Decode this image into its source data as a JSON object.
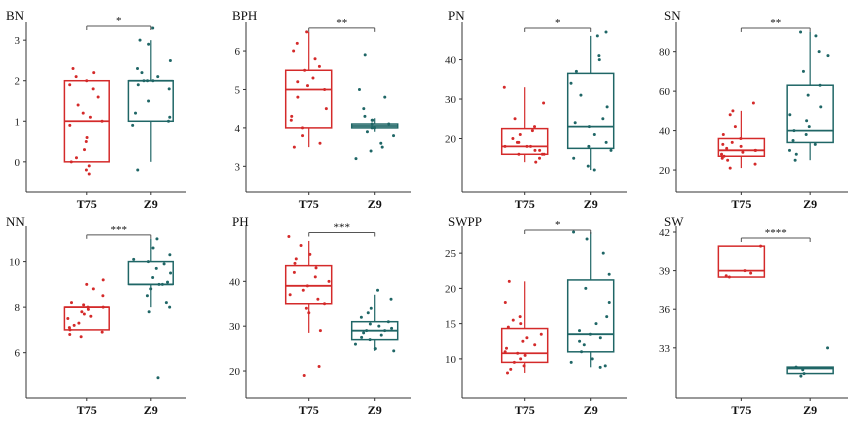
{
  "colors": {
    "T75": "#d42a2a",
    "Z9": "#1f6666",
    "axis": "#333333",
    "bracket": "#555555"
  },
  "chart_data": [
    {
      "type": "box",
      "title": "BN",
      "categories": [
        "T75",
        "Z9"
      ],
      "ylim": [
        -0.3,
        3.3
      ],
      "yticks": [
        0,
        1,
        2,
        3
      ],
      "significance": "*",
      "series": [
        {
          "name": "T75",
          "q1": 0,
          "median": 1,
          "q3": 2,
          "whisker_low": 0,
          "whisker_high": 2,
          "points": [
            -0.2,
            -0.1,
            0,
            0.1,
            0.3,
            0.6,
            0.9,
            1.0,
            1.1,
            1.2,
            1.4,
            1.6,
            1.8,
            1.9,
            2.0,
            2.1,
            2.2,
            2.3,
            -0.3,
            0.5
          ]
        },
        {
          "name": "Z9",
          "q1": 1,
          "median": 2,
          "q3": 2,
          "whisker_low": 0,
          "whisker_high": 3,
          "points": [
            -0.2,
            0.9,
            1.0,
            1.1,
            1.2,
            1.5,
            1.8,
            1.9,
            2.0,
            2.0,
            2.1,
            2.2,
            2.3,
            2.5,
            2.9,
            3.0,
            3.3,
            2.0
          ]
        }
      ]
    },
    {
      "type": "box",
      "title": "BPH",
      "categories": [
        "T75",
        "Z9"
      ],
      "ylim": [
        2.8,
        6.6
      ],
      "yticks": [
        3,
        4,
        5,
        6
      ],
      "significance": "**",
      "series": [
        {
          "name": "T75",
          "q1": 4.0,
          "median": 5.0,
          "q3": 5.5,
          "whisker_low": 3.5,
          "whisker_high": 6.5,
          "points": [
            3.5,
            3.6,
            3.8,
            4.0,
            4.2,
            4.5,
            4.8,
            5.0,
            5.1,
            5.2,
            5.3,
            5.5,
            5.6,
            5.8,
            6.0,
            6.2,
            6.5,
            4.3
          ]
        },
        {
          "name": "Z9",
          "q1": 4.0,
          "median": 4.05,
          "q3": 4.1,
          "whisker_low": 3.9,
          "whisker_high": 4.25,
          "points": [
            3.2,
            3.4,
            3.5,
            3.6,
            3.8,
            3.9,
            4.0,
            4.0,
            4.1,
            4.1,
            4.2,
            4.2,
            4.3,
            4.5,
            4.8,
            5.0,
            5.9
          ]
        }
      ]
    },
    {
      "type": "box",
      "title": "PN",
      "categories": [
        "T75",
        "Z9"
      ],
      "ylim": [
        11,
        48
      ],
      "yticks": [
        20,
        30,
        40
      ],
      "significance": "*",
      "series": [
        {
          "name": "T75",
          "q1": 16,
          "median": 18,
          "q3": 22.5,
          "whisker_low": 14,
          "whisker_high": 33,
          "points": [
            14,
            15,
            16,
            16,
            17,
            17,
            18,
            18,
            18,
            19,
            19,
            20,
            21,
            22,
            23,
            25,
            29,
            33,
            16
          ]
        },
        {
          "name": "Z9",
          "q1": 17.5,
          "median": 23,
          "q3": 36.5,
          "whisker_low": 12,
          "whisker_high": 46,
          "points": [
            12,
            13,
            15,
            17,
            18,
            19,
            21,
            23,
            24,
            25,
            28,
            31,
            34,
            37,
            40,
            41,
            46,
            47
          ]
        }
      ]
    },
    {
      "type": "box",
      "title": "SN",
      "categories": [
        "T75",
        "Z9"
      ],
      "ylim": [
        18,
        92
      ],
      "yticks": [
        20,
        40,
        60,
        80
      ],
      "significance": "**",
      "series": [
        {
          "name": "T75",
          "q1": 27,
          "median": 30,
          "q3": 36,
          "whisker_low": 21,
          "whisker_high": 50,
          "points": [
            21,
            23,
            25,
            26,
            27,
            28,
            29,
            30,
            30,
            31,
            32,
            33,
            34,
            36,
            38,
            42,
            48,
            50,
            54
          ]
        },
        {
          "name": "Z9",
          "q1": 34,
          "median": 40,
          "q3": 63,
          "whisker_low": 25,
          "whisker_high": 90,
          "points": [
            25,
            28,
            30,
            33,
            35,
            38,
            40,
            42,
            45,
            48,
            52,
            58,
            63,
            70,
            78,
            80,
            88,
            90
          ]
        }
      ]
    },
    {
      "type": "box",
      "title": "NN",
      "categories": [
        "T75",
        "Z9"
      ],
      "ylim": [
        4.8,
        11.3
      ],
      "yticks": [
        6,
        8,
        10
      ],
      "significance": "***",
      "series": [
        {
          "name": "T75",
          "q1": 7,
          "median": 8,
          "q3": 8,
          "whisker_low": 7,
          "whisker_high": 8,
          "points": [
            6.7,
            6.8,
            6.9,
            7.0,
            7.1,
            7.2,
            7.3,
            7.5,
            7.6,
            7.7,
            7.8,
            7.9,
            8.0,
            8.0,
            8.1,
            8.2,
            8.5,
            8.8,
            9.0,
            9.2
          ]
        },
        {
          "name": "Z9",
          "q1": 9,
          "median": 9,
          "q3": 10,
          "whisker_low": 8,
          "whisker_high": 11,
          "points": [
            4.9,
            7.8,
            8.0,
            8.2,
            8.5,
            8.8,
            9.0,
            9.0,
            9.1,
            9.3,
            9.5,
            9.7,
            9.9,
            10.0,
            10.1,
            10.3,
            10.6,
            11.0
          ]
        }
      ]
    },
    {
      "type": "box",
      "title": "PH",
      "categories": [
        "T75",
        "Z9"
      ],
      "ylim": [
        18,
        51
      ],
      "yticks": [
        20,
        30,
        40
      ],
      "significance": "***",
      "series": [
        {
          "name": "T75",
          "q1": 35,
          "median": 39,
          "q3": 43.5,
          "whisker_low": 28.5,
          "whisker_high": 49,
          "points": [
            19,
            21,
            29,
            33,
            34,
            35,
            36,
            37,
            38,
            39,
            40,
            41,
            42,
            43,
            44,
            45,
            46,
            48,
            50
          ]
        },
        {
          "name": "Z9",
          "q1": 27,
          "median": 29,
          "q3": 31,
          "whisker_low": 24.5,
          "whisker_high": 37,
          "points": [
            24.5,
            25,
            26,
            27,
            27.5,
            28,
            28.5,
            29,
            29,
            29.5,
            30,
            30.5,
            31,
            32,
            33,
            34,
            36,
            38
          ]
        }
      ]
    },
    {
      "type": "box",
      "title": "SWPP",
      "categories": [
        "T75",
        "Z9"
      ],
      "ylim": [
        7,
        28
      ],
      "yticks": [
        10,
        15,
        20,
        25
      ],
      "significance": "*",
      "series": [
        {
          "name": "T75",
          "q1": 9.5,
          "median": 10.8,
          "q3": 14.3,
          "whisker_low": 8,
          "whisker_high": 21,
          "points": [
            8,
            8.5,
            9,
            9.5,
            10,
            10.5,
            10.8,
            11,
            11.5,
            12,
            12.5,
            13,
            13.5,
            14.5,
            15,
            15.5,
            16,
            18,
            21
          ]
        },
        {
          "name": "Z9",
          "q1": 11,
          "median": 13.5,
          "q3": 21.2,
          "whisker_low": 8.8,
          "whisker_high": 28,
          "points": [
            8.8,
            9,
            9.5,
            10,
            11,
            12,
            12.5,
            13,
            13.5,
            14,
            15,
            16,
            18,
            20,
            22,
            25,
            27,
            28
          ]
        }
      ]
    },
    {
      "type": "box",
      "title": "SW",
      "categories": [
        "T75",
        "Z9"
      ],
      "ylim": [
        30.5,
        42
      ],
      "yticks": [
        33,
        36,
        39,
        42
      ],
      "significance": "****",
      "series": [
        {
          "name": "T75",
          "q1": 38.5,
          "median": 39,
          "q3": 40.9,
          "whisker_low": 38.5,
          "whisker_high": 40.9,
          "points": [
            38.5,
            38.6,
            38.8,
            39,
            40.9
          ]
        },
        {
          "name": "Z9",
          "q1": 31,
          "median": 31.4,
          "q3": 31.5,
          "whisker_low": 31,
          "whisker_high": 31.5,
          "points": [
            30.8,
            31.0,
            31.3,
            31.5,
            33.0
          ]
        }
      ]
    }
  ]
}
